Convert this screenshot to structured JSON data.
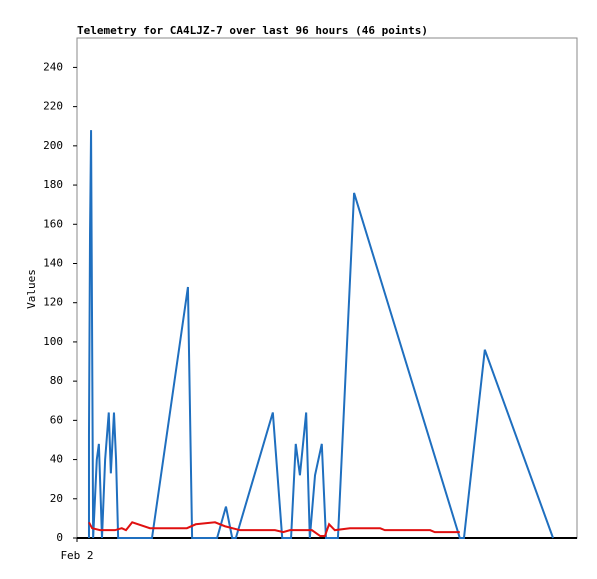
{
  "chart_data": {
    "type": "line",
    "title": "Telemetry for CA4LJZ-7 over last 96 hours (46 points)",
    "y_label": "Values",
    "xlim": [
      0,
      96
    ],
    "xticks": [
      {
        "value": 0,
        "label": "Feb 2"
      }
    ],
    "ylim": [
      0,
      255
    ],
    "yticks": [
      0,
      20,
      40,
      60,
      80,
      100,
      120,
      140,
      160,
      180,
      200,
      220,
      240
    ],
    "series": [
      {
        "color": "#1f6fbf",
        "x": [
          2.3,
          2.3,
          2.5,
          2.7,
          3.1,
          3.8,
          4.2,
          4.8,
          5.4,
          6.1,
          6.5,
          7.1,
          7.5,
          7.9,
          14.4,
          21.3,
          22.1,
          26.9,
          28.6,
          29.8,
          30.5,
          37.6,
          39.4,
          41.1,
          42.0,
          42.8,
          44.0,
          44.7,
          45.7,
          47.0,
          47.8,
          50.1,
          53.2,
          73.5,
          74.3,
          78.3,
          91.4
        ],
        "values": [
          0,
          52,
          155,
          208,
          0,
          40,
          48,
          0,
          40,
          64,
          33,
          64,
          40,
          0,
          0,
          128,
          0,
          0,
          16,
          0,
          0,
          64,
          0,
          0,
          48,
          32,
          64,
          0,
          32,
          48,
          0,
          0,
          176,
          0,
          0,
          96,
          0
        ]
      },
      {
        "color": "#e01010",
        "x": [
          2.3,
          2.9,
          4.4,
          7.3,
          8.6,
          9.4,
          10.6,
          14.0,
          21.1,
          22.8,
          26.5,
          28.4,
          31.3,
          38.0,
          39.6,
          40.9,
          45.1,
          46.7,
          47.6,
          48.4,
          49.5,
          52.4,
          58.2,
          59.1,
          67.8,
          68.7,
          73.5
        ],
        "values": [
          8,
          5,
          4,
          4,
          5,
          4,
          8,
          5,
          5,
          7,
          8,
          6,
          4,
          4,
          3,
          4,
          4,
          1,
          1,
          7,
          4,
          5,
          5,
          4,
          4,
          3,
          3
        ]
      }
    ]
  }
}
